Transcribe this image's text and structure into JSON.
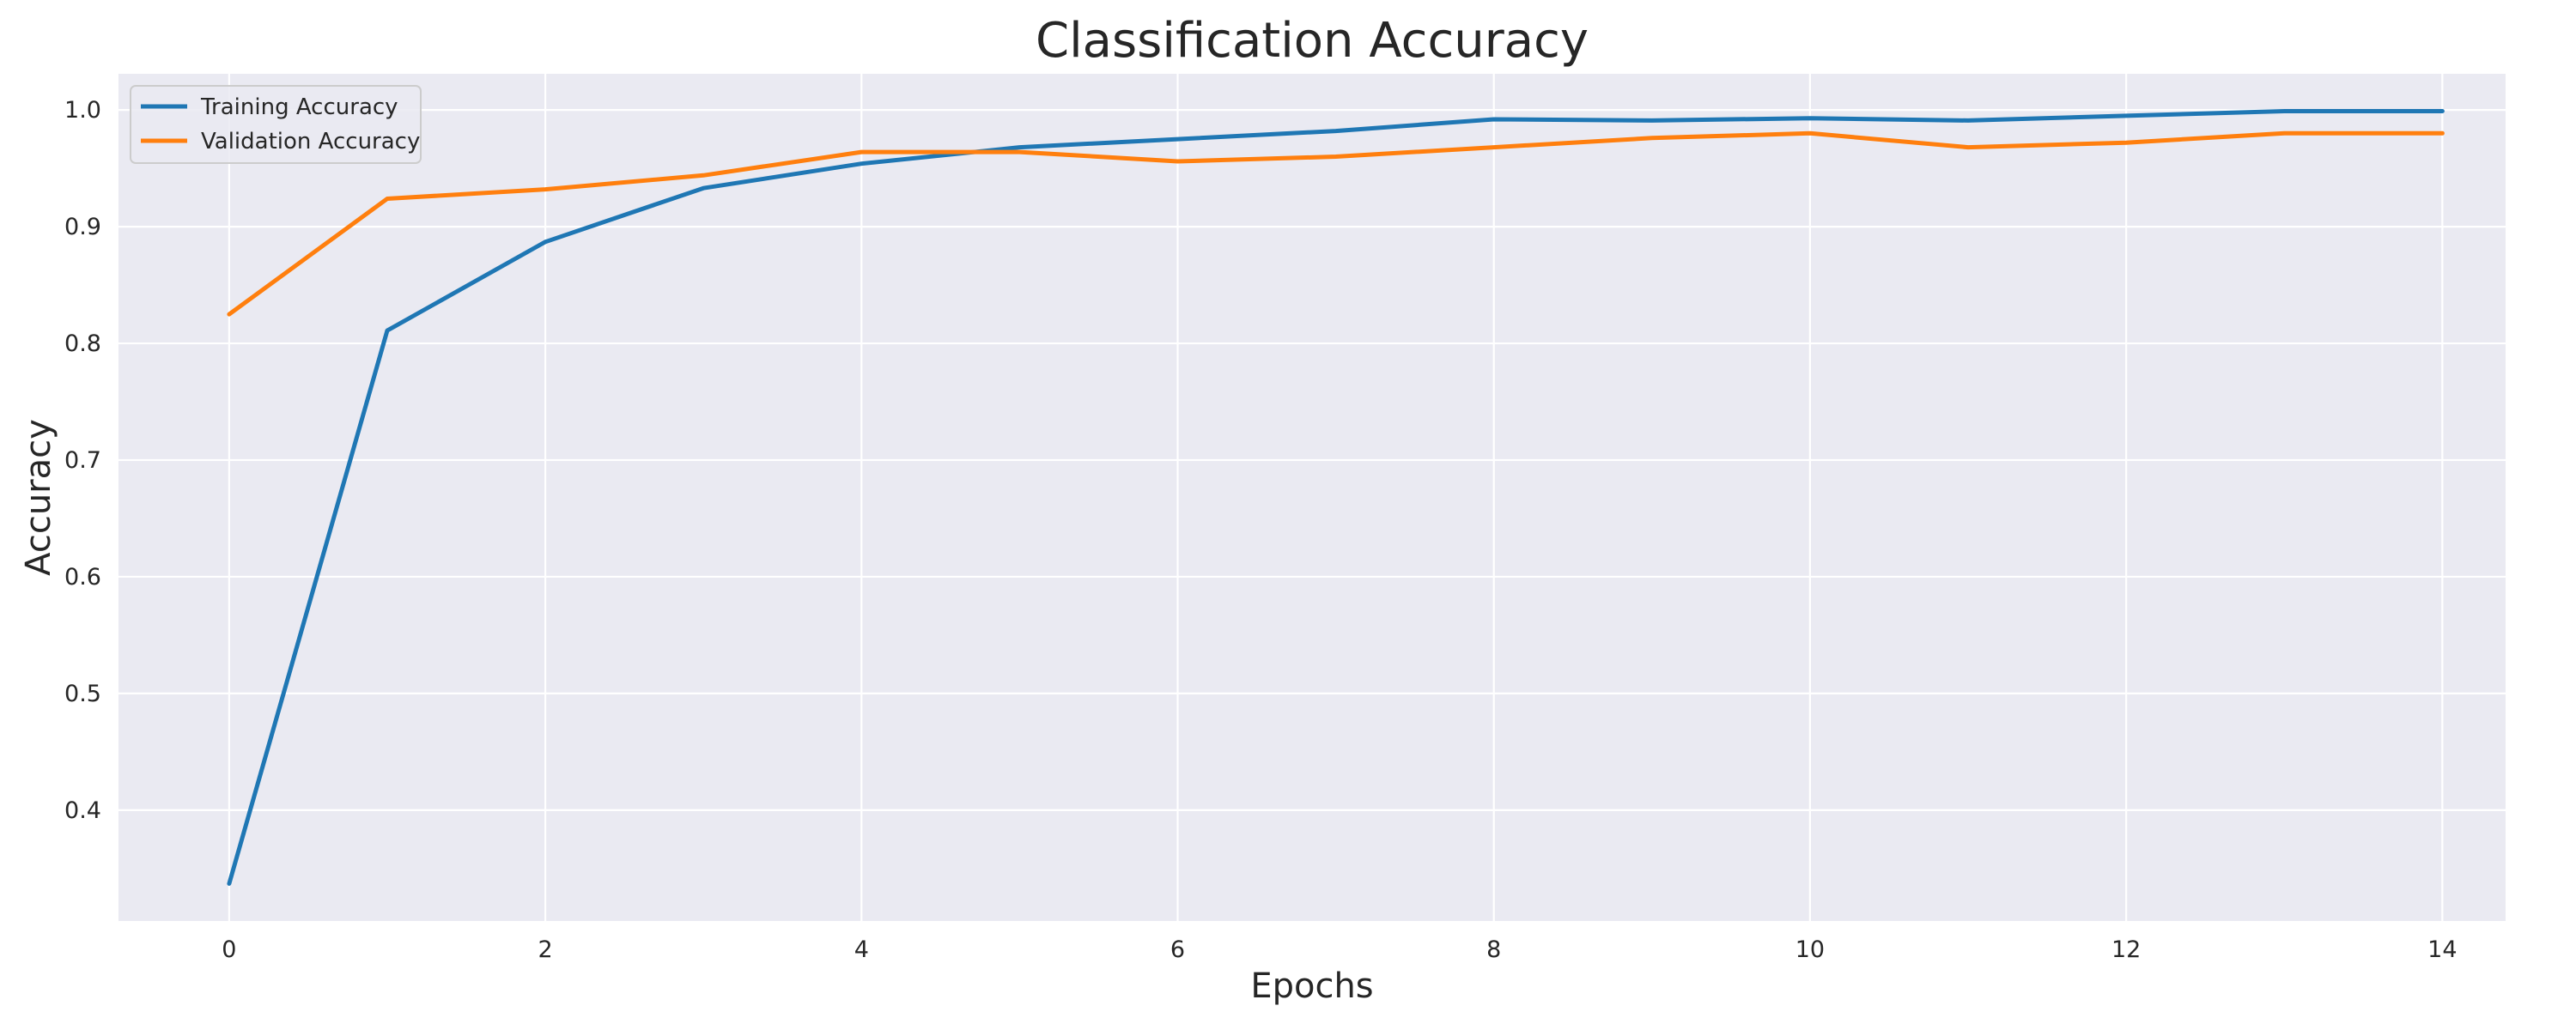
{
  "chart_data": {
    "type": "line",
    "title": "Classification Accuracy",
    "xlabel": "Epochs",
    "ylabel": "Accuracy",
    "x": [
      0,
      1,
      2,
      3,
      4,
      5,
      6,
      7,
      8,
      9,
      10,
      11,
      12,
      13,
      14
    ],
    "xticks": [
      0,
      2,
      4,
      6,
      8,
      10,
      12,
      14
    ],
    "yticks": [
      0.4,
      0.5,
      0.6,
      0.7,
      0.8,
      0.9,
      1.0
    ],
    "xlim": [
      -0.7,
      14.4
    ],
    "ylim": [
      0.305,
      1.031
    ],
    "grid": true,
    "legend_position": "top-left",
    "background_color": "#eaeaf2",
    "grid_color": "#ffffff",
    "series": [
      {
        "name": "Training Accuracy",
        "color": "#1f77b4",
        "values": [
          0.337,
          0.811,
          0.887,
          0.933,
          0.954,
          0.968,
          0.975,
          0.982,
          0.992,
          0.991,
          0.993,
          0.991,
          0.995,
          0.999,
          0.999
        ]
      },
      {
        "name": "Validation Accuracy",
        "color": "#ff7f0e",
        "values": [
          0.825,
          0.924,
          0.932,
          0.944,
          0.964,
          0.964,
          0.956,
          0.96,
          0.968,
          0.976,
          0.98,
          0.968,
          0.972,
          0.98,
          0.98
        ]
      }
    ]
  }
}
